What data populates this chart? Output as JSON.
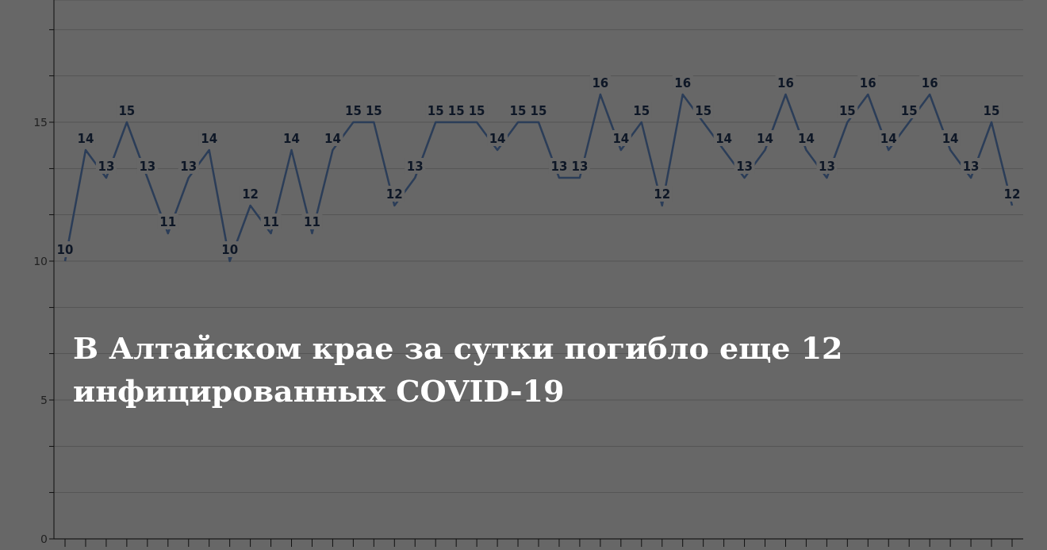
{
  "chart_data": {
    "type": "line",
    "title": "В Алтайском крае за сутки погибло еще 12 инфицированных COVID-19",
    "categories": [
      null,
      null,
      null,
      null,
      null,
      null,
      null,
      null,
      null,
      null,
      null,
      null,
      null,
      null,
      null,
      null,
      null,
      null,
      null,
      null,
      null,
      null,
      null,
      null,
      null,
      null,
      null,
      null,
      null,
      null,
      null,
      null,
      null,
      null,
      null,
      null,
      null,
      null,
      null,
      null,
      null,
      null,
      null,
      null,
      null,
      null,
      null
    ],
    "values": [
      10,
      14,
      13,
      15,
      13,
      11,
      13,
      14,
      10,
      12,
      11,
      14,
      11,
      14,
      15,
      15,
      12,
      13,
      15,
      15,
      15,
      14,
      15,
      15,
      13,
      13,
      16,
      14,
      15,
      12,
      16,
      15,
      14,
      13,
      14,
      16,
      14,
      13,
      15,
      16,
      14,
      15,
      16,
      14,
      13,
      15,
      12
    ],
    "color": "#2b3d58",
    "ylim": [
      0,
      19.4
    ],
    "yticks": [
      0,
      {
        "value": 1.67,
        "label": null
      },
      {
        "value": 3.33,
        "label": null
      },
      5,
      {
        "value": 6.67,
        "label": null
      },
      {
        "value": 8.33,
        "label": null
      },
      10,
      {
        "value": 11.67,
        "label": null
      },
      {
        "value": 13.33,
        "label": null
      },
      15,
      {
        "value": 16.67,
        "label": null
      },
      {
        "value": 18.33,
        "label": null
      }
    ],
    "grid": "y",
    "data_labels": true,
    "marker": "none",
    "line_style": "solid",
    "tick_labels": "y"
  }
}
